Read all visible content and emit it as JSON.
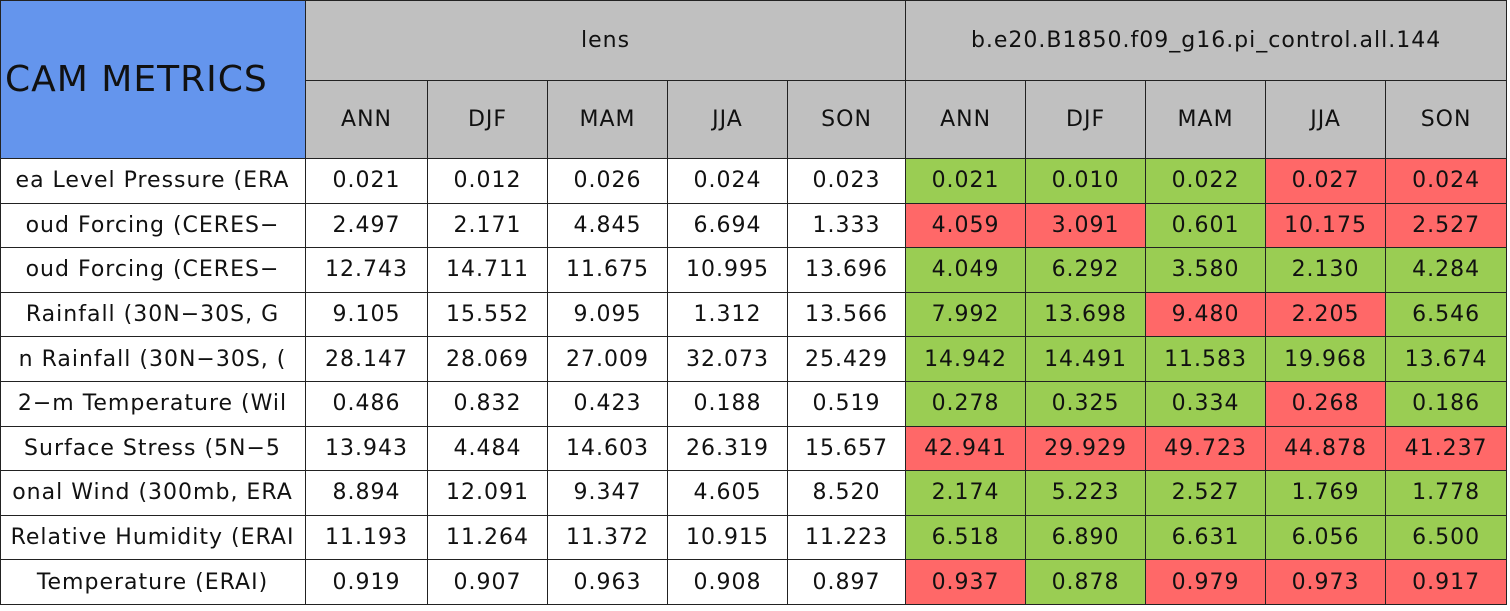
{
  "header": {
    "title": "CAM METRICS",
    "groups": [
      {
        "name": "lens",
        "seasons": [
          "ANN",
          "DJF",
          "MAM",
          "JJA",
          "SON"
        ]
      },
      {
        "name": "b.e20.B1850.f09_g16.pi_control.all.144",
        "seasons": [
          "ANN",
          "DJF",
          "MAM",
          "JJA",
          "SON"
        ]
      }
    ]
  },
  "colors": {
    "header": "#c0c0c0",
    "title": "#6495ed",
    "plain": "#ffffff",
    "better": "#9acd53",
    "worse": "#ff6868"
  },
  "rows": [
    {
      "label": "ea Level Pressure (ERA",
      "values": [
        "0.021",
        "0.012",
        "0.026",
        "0.024",
        "0.023",
        "0.021",
        "0.010",
        "0.022",
        "0.027",
        "0.024"
      ],
      "status": [
        "plain",
        "plain",
        "plain",
        "plain",
        "plain",
        "better",
        "better",
        "better",
        "worse",
        "worse"
      ]
    },
    {
      "label": "oud Forcing (CERES−",
      "values": [
        "2.497",
        "2.171",
        "4.845",
        "6.694",
        "1.333",
        "4.059",
        "3.091",
        "0.601",
        "10.175",
        "2.527"
      ],
      "status": [
        "plain",
        "plain",
        "plain",
        "plain",
        "plain",
        "worse",
        "worse",
        "better",
        "worse",
        "worse"
      ]
    },
    {
      "label": "oud Forcing (CERES−",
      "values": [
        "12.743",
        "14.711",
        "11.675",
        "10.995",
        "13.696",
        "4.049",
        "6.292",
        "3.580",
        "2.130",
        "4.284"
      ],
      "status": [
        "plain",
        "plain",
        "plain",
        "plain",
        "plain",
        "better",
        "better",
        "better",
        "better",
        "better"
      ]
    },
    {
      "label": "Rainfall (30N−30S, G",
      "values": [
        "9.105",
        "15.552",
        "9.095",
        "1.312",
        "13.566",
        "7.992",
        "13.698",
        "9.480",
        "2.205",
        "6.546"
      ],
      "status": [
        "plain",
        "plain",
        "plain",
        "plain",
        "plain",
        "better",
        "better",
        "worse",
        "worse",
        "better"
      ]
    },
    {
      "label": "n Rainfall (30N−30S, (",
      "values": [
        "28.147",
        "28.069",
        "27.009",
        "32.073",
        "25.429",
        "14.942",
        "14.491",
        "11.583",
        "19.968",
        "13.674"
      ],
      "status": [
        "plain",
        "plain",
        "plain",
        "plain",
        "plain",
        "better",
        "better",
        "better",
        "better",
        "better"
      ]
    },
    {
      "label": "2−m Temperature (Wil",
      "values": [
        "0.486",
        "0.832",
        "0.423",
        "0.188",
        "0.519",
        "0.278",
        "0.325",
        "0.334",
        "0.268",
        "0.186"
      ],
      "status": [
        "plain",
        "plain",
        "plain",
        "plain",
        "plain",
        "better",
        "better",
        "better",
        "worse",
        "better"
      ]
    },
    {
      "label": "Surface Stress (5N−5",
      "values": [
        "13.943",
        "4.484",
        "14.603",
        "26.319",
        "15.657",
        "42.941",
        "29.929",
        "49.723",
        "44.878",
        "41.237"
      ],
      "status": [
        "plain",
        "plain",
        "plain",
        "plain",
        "plain",
        "worse",
        "worse",
        "worse",
        "worse",
        "worse"
      ]
    },
    {
      "label": "onal Wind (300mb, ERA",
      "values": [
        "8.894",
        "12.091",
        "9.347",
        "4.605",
        "8.520",
        "2.174",
        "5.223",
        "2.527",
        "1.769",
        "1.778"
      ],
      "status": [
        "plain",
        "plain",
        "plain",
        "plain",
        "plain",
        "better",
        "better",
        "better",
        "better",
        "better"
      ]
    },
    {
      "label": "Relative Humidity (ERAI",
      "values": [
        "11.193",
        "11.264",
        "11.372",
        "10.915",
        "11.223",
        "6.518",
        "6.890",
        "6.631",
        "6.056",
        "6.500"
      ],
      "status": [
        "plain",
        "plain",
        "plain",
        "plain",
        "plain",
        "better",
        "better",
        "better",
        "better",
        "better"
      ]
    },
    {
      "label": "Temperature (ERAI)",
      "values": [
        "0.919",
        "0.907",
        "0.963",
        "0.908",
        "0.897",
        "0.937",
        "0.878",
        "0.979",
        "0.973",
        "0.917"
      ],
      "status": [
        "plain",
        "plain",
        "plain",
        "plain",
        "plain",
        "worse",
        "better",
        "worse",
        "worse",
        "worse"
      ]
    }
  ]
}
